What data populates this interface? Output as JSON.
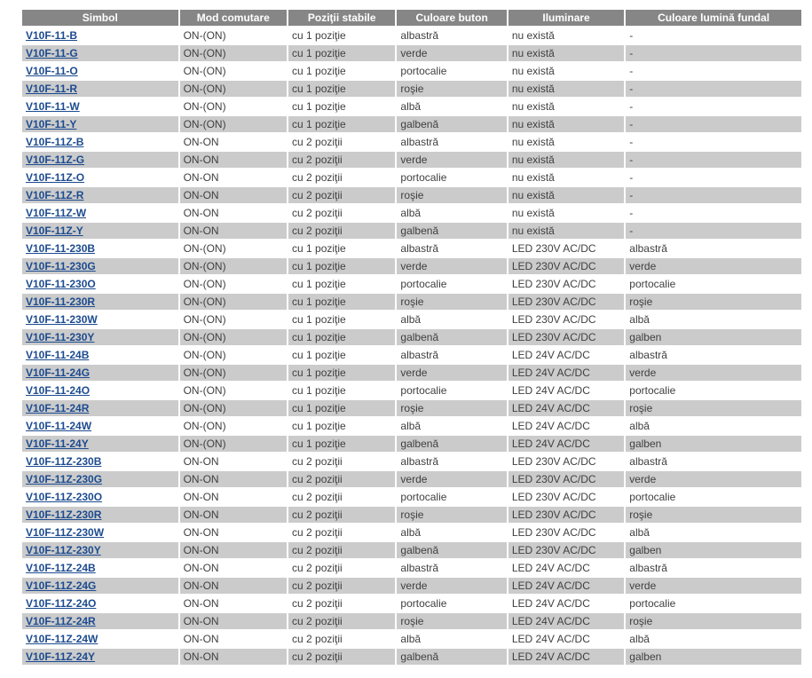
{
  "colors": {
    "header-bg": "#868686",
    "header-text": "#ffffff",
    "row-bg": "#ffffff",
    "row-alt-bg": "#cbcbcb",
    "link-color": "#1c4b8f",
    "cell-text": "#3f3f3f",
    "page-bg": "#ffffff"
  },
  "table": {
    "headers": [
      "Simbol",
      "Mod comutare",
      "Poziţii stabile",
      "Culoare buton",
      "Iluminare",
      "Culoare lumină fundal"
    ],
    "header_keys": [
      "simbol",
      "mod-comutare",
      "pozitii-stabile",
      "culoare-buton",
      "iluminare",
      "culoare-lumina-fundal"
    ],
    "rows": [
      [
        "V10F-11-B",
        "ON-(ON)",
        "cu 1 poziţie",
        "albastră",
        "nu există",
        "-"
      ],
      [
        "V10F-11-G",
        "ON-(ON)",
        "cu 1 poziţie",
        "verde",
        "nu există",
        "-"
      ],
      [
        "V10F-11-O",
        "ON-(ON)",
        "cu 1 poziţie",
        "portocalie",
        "nu există",
        "-"
      ],
      [
        "V10F-11-R",
        "ON-(ON)",
        "cu 1 poziţie",
        "roşie",
        "nu există",
        "-"
      ],
      [
        "V10F-11-W",
        "ON-(ON)",
        "cu 1 poziţie",
        "albă",
        "nu există",
        "-"
      ],
      [
        "V10F-11-Y",
        "ON-(ON)",
        "cu 1 poziţie",
        "galbenă",
        "nu există",
        "-"
      ],
      [
        "V10F-11Z-B",
        "ON-ON",
        "cu 2 poziţii",
        "albastră",
        "nu există",
        "-"
      ],
      [
        "V10F-11Z-G",
        "ON-ON",
        "cu 2 poziţii",
        "verde",
        "nu există",
        "-"
      ],
      [
        "V10F-11Z-O",
        "ON-ON",
        "cu 2 poziţii",
        "portocalie",
        "nu există",
        "-"
      ],
      [
        "V10F-11Z-R",
        "ON-ON",
        "cu 2 poziţii",
        "roşie",
        "nu există",
        "-"
      ],
      [
        "V10F-11Z-W",
        "ON-ON",
        "cu 2 poziţii",
        "albă",
        "nu există",
        "-"
      ],
      [
        "V10F-11Z-Y",
        "ON-ON",
        "cu 2 poziţii",
        "galbenă",
        "nu există",
        "-"
      ],
      [
        "V10F-11-230B",
        "ON-(ON)",
        "cu 1 poziţie",
        "albastră",
        "LED 230V AC/DC",
        "albastră"
      ],
      [
        "V10F-11-230G",
        "ON-(ON)",
        "cu 1 poziţie",
        "verde",
        "LED 230V AC/DC",
        "verde"
      ],
      [
        "V10F-11-230O",
        "ON-(ON)",
        "cu 1 poziţie",
        "portocalie",
        "LED 230V AC/DC",
        "portocalie"
      ],
      [
        "V10F-11-230R",
        "ON-(ON)",
        "cu 1 poziţie",
        "roşie",
        "LED 230V AC/DC",
        "roşie"
      ],
      [
        "V10F-11-230W",
        "ON-(ON)",
        "cu 1 poziţie",
        "albă",
        "LED 230V AC/DC",
        "albă"
      ],
      [
        "V10F-11-230Y",
        "ON-(ON)",
        "cu 1 poziţie",
        "galbenă",
        "LED 230V AC/DC",
        "galben"
      ],
      [
        "V10F-11-24B",
        "ON-(ON)",
        "cu 1 poziţie",
        "albastră",
        "LED 24V AC/DC",
        "albastră"
      ],
      [
        "V10F-11-24G",
        "ON-(ON)",
        "cu 1 poziţie",
        "verde",
        "LED 24V AC/DC",
        "verde"
      ],
      [
        "V10F-11-24O",
        "ON-(ON)",
        "cu 1 poziţie",
        "portocalie",
        "LED 24V AC/DC",
        "portocalie"
      ],
      [
        "V10F-11-24R",
        "ON-(ON)",
        "cu 1 poziţie",
        "roşie",
        "LED 24V AC/DC",
        "roşie"
      ],
      [
        "V10F-11-24W",
        "ON-(ON)",
        "cu 1 poziţie",
        "albă",
        "LED 24V AC/DC",
        "albă"
      ],
      [
        "V10F-11-24Y",
        "ON-(ON)",
        "cu 1 poziţie",
        "galbenă",
        "LED 24V AC/DC",
        "galben"
      ],
      [
        "V10F-11Z-230B",
        "ON-ON",
        "cu 2 poziţii",
        "albastră",
        "LED 230V AC/DC",
        "albastră"
      ],
      [
        "V10F-11Z-230G",
        "ON-ON",
        "cu 2 poziţii",
        "verde",
        "LED 230V AC/DC",
        "verde"
      ],
      [
        "V10F-11Z-230O",
        "ON-ON",
        "cu 2 poziţii",
        "portocalie",
        "LED 230V AC/DC",
        "portocalie"
      ],
      [
        "V10F-11Z-230R",
        "ON-ON",
        "cu 2 poziţii",
        "roşie",
        "LED 230V AC/DC",
        "roşie"
      ],
      [
        "V10F-11Z-230W",
        "ON-ON",
        "cu 2 poziţii",
        "albă",
        "LED 230V AC/DC",
        "albă"
      ],
      [
        "V10F-11Z-230Y",
        "ON-ON",
        "cu 2 poziţii",
        "galbenă",
        "LED 230V AC/DC",
        "galben"
      ],
      [
        "V10F-11Z-24B",
        "ON-ON",
        "cu 2 poziţii",
        "albastră",
        "LED 24V AC/DC",
        "albastră"
      ],
      [
        "V10F-11Z-24G",
        "ON-ON",
        "cu 2 poziţii",
        "verde",
        "LED 24V AC/DC",
        "verde"
      ],
      [
        "V10F-11Z-24O",
        "ON-ON",
        "cu 2 poziţii",
        "portocalie",
        "LED 24V AC/DC",
        "portocalie"
      ],
      [
        "V10F-11Z-24R",
        "ON-ON",
        "cu 2 poziţii",
        "roşie",
        "LED 24V AC/DC",
        "roşie"
      ],
      [
        "V10F-11Z-24W",
        "ON-ON",
        "cu 2 poziţii",
        "albă",
        "LED 24V AC/DC",
        "albă"
      ],
      [
        "V10F-11Z-24Y",
        "ON-ON",
        "cu 2 poziţii",
        "galbenă",
        "LED 24V AC/DC",
        "galben"
      ]
    ]
  }
}
